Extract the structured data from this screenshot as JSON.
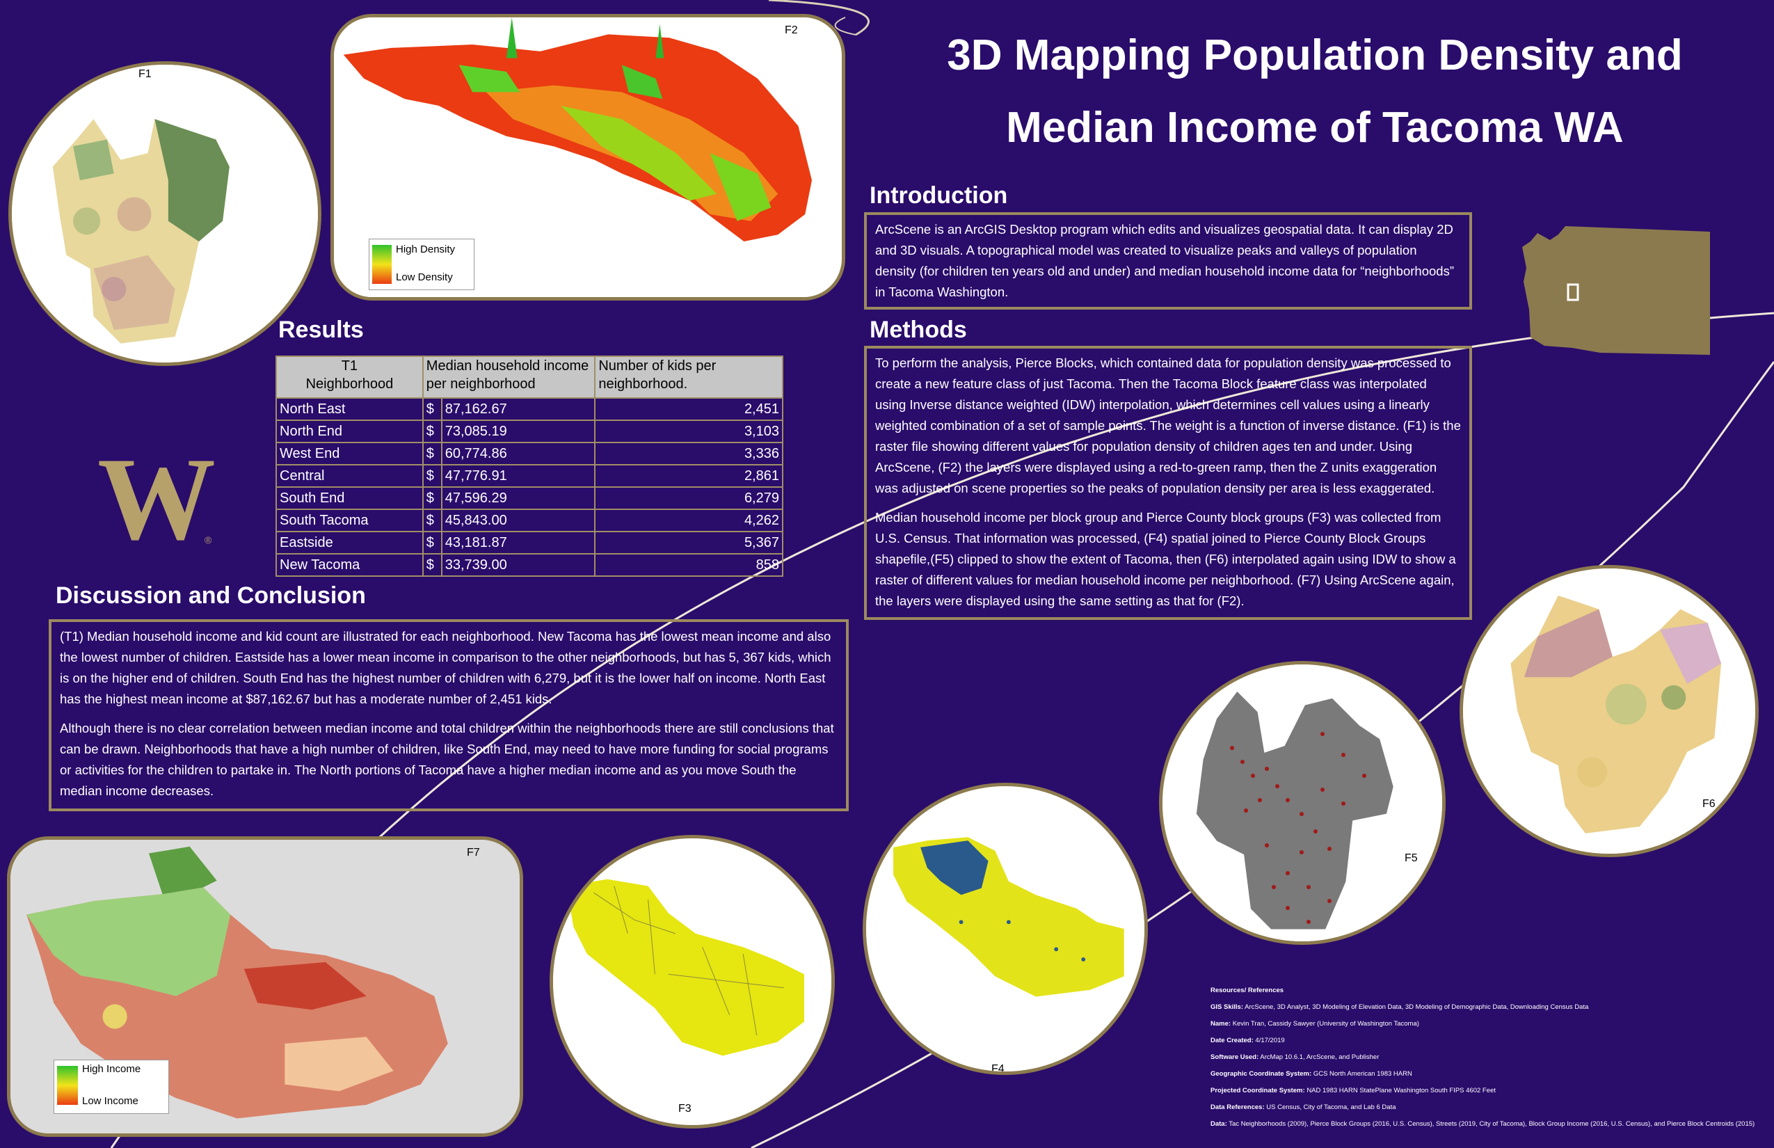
{
  "title": {
    "line1": "3D Mapping Population Density and",
    "line2": "Median Income of Tacoma WA"
  },
  "introduction": {
    "heading": "Introduction",
    "text": "ArcScene is an ArcGIS Desktop program which edits and visualizes geospatial data. It can display 2D and 3D visuals. A topographical model was created to visualize peaks and valleys of population density (for children ten years old and under) and median household income data for “neighborhoods” in Tacoma Washington."
  },
  "methods": {
    "heading": "Methods",
    "p1": "To perform the analysis, Pierce Blocks, which contained data for population density was processed to create a new feature class of just Tacoma. Then the Tacoma Block feature class was interpolated using Inverse distance weighted (IDW) interpolation, which determines cell values using a linearly weighted combination of a set of sample points. The weight is a function of inverse distance. (F1) is the raster file showing different values for population density of children ages ten and under. Using ArcScene, (F2) the layers were displayed using a red-to-green ramp, then the Z units exaggeration was adjusted on scene properties so the peaks of population density per area is less exaggerated.",
    "p2": "Median household income per block group and Pierce County block groups (F3) was collected from U.S. Census. That information was processed, (F4) spatial joined to Pierce County Block Groups shapefile,(F5) clipped to show the extent of Tacoma, then (F6) interpolated again using IDW to show a raster of different values for median household income per neighborhood. (F7) Using ArcScene again, the layers were displayed using the same setting as that for (F2)."
  },
  "results": {
    "heading": "Results",
    "headers": [
      "T1\nNeighborhood",
      "Median household income per neighborhood",
      "Number of kids per neighborhood."
    ],
    "rows": [
      {
        "name": "North East",
        "cur": "$",
        "income": "87,162.67",
        "kids": "2,451"
      },
      {
        "name": "North End",
        "cur": "$",
        "income": "73,085.19",
        "kids": "3,103"
      },
      {
        "name": "West End",
        "cur": "$",
        "income": "60,774.86",
        "kids": "3,336"
      },
      {
        "name": "Central",
        "cur": "$",
        "income": "47,776.91",
        "kids": "2,861"
      },
      {
        "name": "South End",
        "cur": "$",
        "income": "47,596.29",
        "kids": "6,279"
      },
      {
        "name": "South Tacoma",
        "cur": "$",
        "income": "45,843.00",
        "kids": "4,262"
      },
      {
        "name": "Eastside",
        "cur": "$",
        "income": "43,181.87",
        "kids": "5,367"
      },
      {
        "name": "New Tacoma",
        "cur": "$",
        "income": "33,739.00",
        "kids": "858"
      }
    ]
  },
  "discussion": {
    "heading": "Discussion and Conclusion",
    "p1": "(T1) Median household income and kid count are illustrated for each neighborhood. New Tacoma has the lowest mean income and also the lowest number of children. Eastside has a lower mean income in comparison to the other neighborhoods, but has 5, 367 kids, which is on the higher end of children. South End has the highest number of children with 6,279, but it is the lower half on income. North East has the highest mean income at $87,162.67 but has a moderate number of 2,451 kids.",
    "p2": "Although there is no clear correlation between median income and total children within the neighborhoods there are still conclusions that can be drawn. Neighborhoods that have a high number of children, like South End, may need to have more funding for social programs or activities for the children to partake in. The North portions of Tacoma have a higher median income and as you move South the median income decreases."
  },
  "figures": {
    "f1": "F1",
    "f2": "F2",
    "f3": "F3",
    "f4": "F4",
    "f5": "F5",
    "f6": "F6",
    "f7": "F7"
  },
  "legends": {
    "density_high": "High Density",
    "density_low": "Low Density",
    "income_high": "High Income",
    "income_low": "Low Income"
  },
  "logo": {
    "letter": "W",
    "mark": "®"
  },
  "references": {
    "heading": "Resources/ References",
    "items": [
      {
        "label": "GIS Skills:",
        "value": "ArcScene, 3D Analyst, 3D Modeling of Elevation Data, 3D Modeling of Demographic Data, Downloading Census Data"
      },
      {
        "label": "Name:",
        "value": "Kevin Tran, Cassidy Sawyer (University of Washington Tacoma)"
      },
      {
        "label": "Date Created:",
        "value": "4/17/2019"
      },
      {
        "label": "Software Used:",
        "value": "ArcMap 10.6.1, ArcScene, and Publisher"
      },
      {
        "label": "Geographic Coordinate System:",
        "value": "GCS North American 1983 HARN"
      },
      {
        "label": "Projected Coordinate System:",
        "value": "NAD 1983 HARN StatePlane Washington South FIPS 4602 Feet"
      },
      {
        "label": "Data References:",
        "value": "US Census, City of Tacoma, and Lab 6 Data"
      },
      {
        "label": "Data:",
        "value": "Tac Neighborhoods (2009), Pierce Block Groups (2016, U.S. Census), Streets (2019, City of Tacoma), Block Group Income (2016, U.S. Census), and Pierce Block Centroids (2015)"
      }
    ]
  }
}
